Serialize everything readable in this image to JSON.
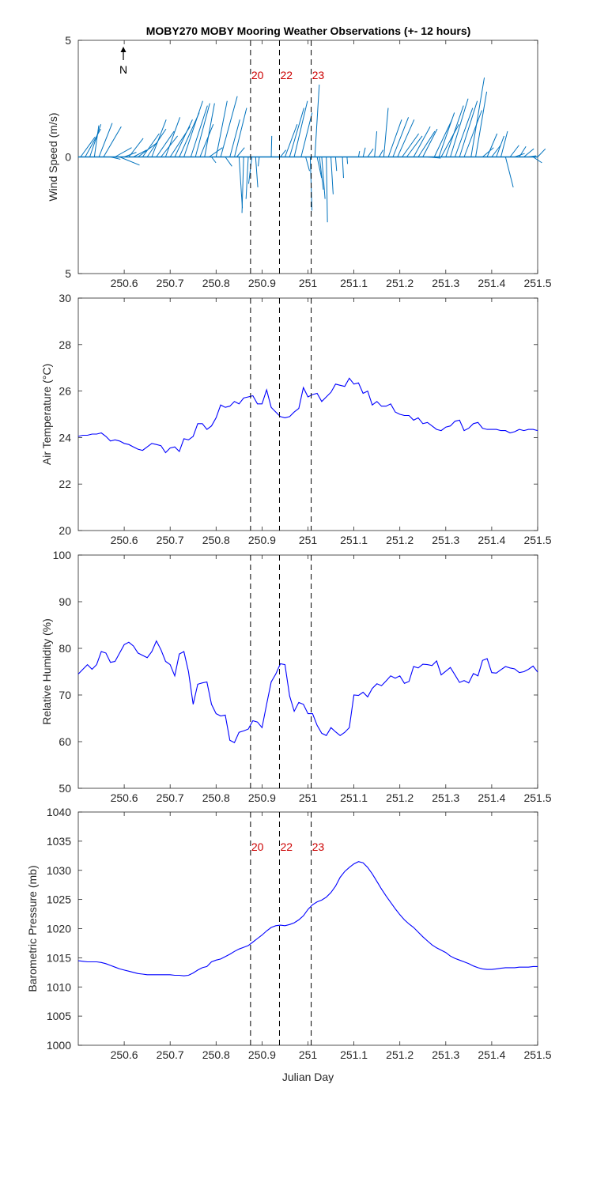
{
  "colors": {
    "wind": "#0072bd",
    "series": "#0000ff",
    "marker_label": "#cc0000",
    "axis": "#262626",
    "marker_line": "#000000"
  },
  "chart_data": [
    {
      "id": "wind",
      "type": "line",
      "title": "MOBY270 MOBY Mooring Weather Observations (+- 12 hours)",
      "ylabel": "Wind Speed (m/s)",
      "xlim": [
        250.5,
        251.5
      ],
      "ylim": [
        -5,
        5
      ],
      "ytick_labels": [
        "5",
        "0",
        "5"
      ],
      "xticks": [
        "250.6",
        "250.7",
        "250.8",
        "250.9",
        "251",
        "251.1",
        "251.2",
        "251.3",
        "251.4",
        "251.5"
      ],
      "north_label": "N",
      "vertical_markers": [
        {
          "x": 250.875,
          "label": "20"
        },
        {
          "x": 250.938,
          "label": "22"
        },
        {
          "x": 251.007,
          "label": "23"
        }
      ],
      "wind_vectors": [
        [
          250.505,
          1.3,
          0.85
        ],
        [
          250.515,
          1.4,
          1.2
        ],
        [
          250.525,
          1.0,
          1.4
        ],
        [
          250.535,
          0.4,
          1.35
        ],
        [
          250.545,
          1.2,
          1.45
        ],
        [
          250.555,
          1.6,
          1.3
        ],
        [
          250.57,
          0.9,
          -0.1
        ],
        [
          250.58,
          1.5,
          0.4
        ],
        [
          250.59,
          1.8,
          -0.35
        ],
        [
          250.6,
          1.1,
          0.2
        ],
        [
          250.61,
          1.3,
          0.8
        ],
        [
          250.62,
          1.2,
          0.3
        ],
        [
          250.63,
          1.7,
          0.6
        ],
        [
          250.64,
          1.5,
          1.0
        ],
        [
          250.65,
          1.7,
          1.2
        ],
        [
          250.66,
          1.3,
          1.6
        ],
        [
          250.67,
          1.6,
          1.1
        ],
        [
          250.68,
          1.5,
          0.9
        ],
        [
          250.69,
          1.3,
          1.7
        ],
        [
          250.7,
          1.8,
          1.3
        ],
        [
          250.71,
          1.6,
          1.6
        ],
        [
          250.72,
          1.8,
          1.9
        ],
        [
          250.73,
          1.7,
          2.4
        ],
        [
          250.745,
          1.5,
          2.2
        ],
        [
          250.755,
          1.3,
          2.3
        ],
        [
          250.765,
          1.2,
          1.4
        ],
        [
          250.775,
          0.9,
          2.3
        ],
        [
          250.785,
          1.2,
          0.4
        ],
        [
          250.79,
          0.4,
          -0.25
        ],
        [
          250.8,
          1.0,
          2.4
        ],
        [
          250.81,
          1.5,
          2.6
        ],
        [
          250.82,
          0.6,
          -0.4
        ],
        [
          250.83,
          0.9,
          1.6
        ],
        [
          250.84,
          1.1,
          2.1
        ],
        [
          250.845,
          0.7,
          0.4
        ],
        [
          250.85,
          0.3,
          -2.2
        ],
        [
          250.86,
          -0.15,
          -2.4
        ],
        [
          250.87,
          -0.2,
          -1.8
        ],
        [
          250.878,
          -0.3,
          -1.15
        ],
        [
          250.886,
          0.2,
          -1.3
        ],
        [
          250.894,
          -0.1,
          -0.4
        ],
        [
          250.92,
          0.05,
          0.9
        ],
        [
          250.94,
          0.5,
          0.3
        ],
        [
          250.95,
          1.1,
          1.4
        ],
        [
          250.96,
          1.3,
          2.1
        ],
        [
          250.97,
          1.2,
          2.4
        ],
        [
          250.985,
          1.0,
          1.9
        ],
        [
          250.995,
          0.35,
          -0.6
        ],
        [
          251.005,
          0.15,
          -2.3
        ],
        [
          251.015,
          0.4,
          3.1
        ],
        [
          251.02,
          0.4,
          -0.9
        ],
        [
          251.025,
          0.35,
          -1.4
        ],
        [
          251.03,
          0.3,
          -1.8
        ],
        [
          251.04,
          0.1,
          -2.8
        ],
        [
          251.05,
          0.2,
          -1.6
        ],
        [
          251.06,
          0.1,
          -0.6
        ],
        [
          251.075,
          0.1,
          -0.9
        ],
        [
          251.085,
          0.05,
          -0.3
        ],
        [
          251.11,
          0.1,
          0.25
        ],
        [
          251.12,
          0.2,
          0.4
        ],
        [
          251.13,
          0.5,
          0.35
        ],
        [
          251.145,
          0.2,
          1.1
        ],
        [
          251.155,
          0.35,
          0.3
        ],
        [
          251.165,
          0.4,
          2.1
        ],
        [
          251.175,
          1.2,
          1.6
        ],
        [
          251.185,
          1.4,
          1.7
        ],
        [
          251.195,
          1.5,
          1.6
        ],
        [
          251.205,
          1.5,
          1.0
        ],
        [
          251.215,
          1.4,
          0.9
        ],
        [
          251.23,
          1.5,
          1.3
        ],
        [
          251.24,
          1.5,
          1.1
        ],
        [
          251.25,
          1.3,
          1.2
        ],
        [
          251.26,
          1.2,
          -0.05
        ],
        [
          251.275,
          1.6,
          1.6
        ],
        [
          251.285,
          1.4,
          1.9
        ],
        [
          251.29,
          1.6,
          1.4
        ],
        [
          251.3,
          1.6,
          2.2
        ],
        [
          251.31,
          1.6,
          2.5
        ],
        [
          251.32,
          1.6,
          2.1
        ],
        [
          251.33,
          1.6,
          2.4
        ],
        [
          251.34,
          1.6,
          2.0
        ],
        [
          251.355,
          1.2,
          3.4
        ],
        [
          251.365,
          1.0,
          2.8
        ],
        [
          251.38,
          1.0,
          0.4
        ],
        [
          251.39,
          0.9,
          1.0
        ],
        [
          251.4,
          0.8,
          0.5
        ],
        [
          251.41,
          0.7,
          0.9
        ],
        [
          251.42,
          0.6,
          1.1
        ],
        [
          251.43,
          0.7,
          -1.3
        ],
        [
          251.44,
          0.8,
          0.5
        ],
        [
          251.45,
          0.9,
          0.15
        ],
        [
          251.46,
          0.6,
          0.45
        ],
        [
          251.47,
          0.9,
          0.35
        ],
        [
          251.48,
          0.7,
          0.05
        ],
        [
          251.49,
          0.8,
          -0.25
        ],
        [
          251.5,
          0.7,
          0.35
        ]
      ]
    },
    {
      "id": "airtemp",
      "type": "line",
      "ylabel": "Air Temperature (°C)",
      "xlim": [
        250.5,
        251.5
      ],
      "ylim": [
        20,
        30
      ],
      "yticks": [
        20,
        22,
        24,
        26,
        28,
        30
      ],
      "xticks": [
        "250.6",
        "250.7",
        "250.8",
        "250.9",
        "251",
        "251.1",
        "251.2",
        "251.3",
        "251.4",
        "251.5"
      ],
      "vertical_markers": [
        {
          "x": 250.875
        },
        {
          "x": 250.938
        },
        {
          "x": 251.007
        }
      ],
      "x": [
        250.5,
        250.51,
        250.52,
        250.53,
        250.54,
        250.55,
        250.56,
        250.57,
        250.58,
        250.59,
        250.6,
        250.61,
        250.62,
        250.63,
        250.64,
        250.65,
        250.66,
        250.67,
        250.68,
        250.69,
        250.7,
        250.71,
        250.72,
        250.73,
        250.74,
        250.75,
        250.76,
        250.77,
        250.78,
        250.79,
        250.8,
        250.81,
        250.82,
        250.83,
        250.84,
        250.85,
        250.86,
        250.87,
        250.88,
        250.89,
        250.9,
        250.91,
        250.92,
        250.93,
        250.94,
        250.95,
        250.96,
        250.97,
        250.98,
        250.99,
        251.0,
        251.01,
        251.02,
        251.03,
        251.04,
        251.05,
        251.06,
        251.07,
        251.08,
        251.09,
        251.1,
        251.11,
        251.12,
        251.13,
        251.14,
        251.15,
        251.16,
        251.17,
        251.18,
        251.19,
        251.2,
        251.21,
        251.22,
        251.23,
        251.24,
        251.25,
        251.26,
        251.27,
        251.28,
        251.29,
        251.3,
        251.31,
        251.32,
        251.33,
        251.34,
        251.35,
        251.36,
        251.37,
        251.38,
        251.39,
        251.4,
        251.41,
        251.42,
        251.43,
        251.44,
        251.45,
        251.46,
        251.47,
        251.48,
        251.49,
        251.5
      ],
      "y": [
        24.05,
        24.1,
        24.1,
        24.15,
        24.15,
        24.2,
        24.05,
        23.85,
        23.9,
        23.85,
        23.75,
        23.7,
        23.6,
        23.5,
        23.45,
        23.6,
        23.75,
        23.7,
        23.65,
        23.35,
        23.55,
        23.6,
        23.4,
        23.95,
        23.9,
        24.05,
        24.6,
        24.6,
        24.35,
        24.5,
        24.85,
        25.4,
        25.3,
        25.35,
        25.55,
        25.45,
        25.7,
        25.75,
        25.8,
        25.45,
        25.45,
        26.05,
        25.3,
        25.1,
        24.9,
        24.85,
        24.9,
        25.1,
        25.25,
        26.15,
        25.75,
        25.85,
        25.9,
        25.55,
        25.75,
        25.95,
        26.3,
        26.25,
        26.2,
        26.55,
        26.3,
        26.35,
        25.9,
        26.0,
        25.4,
        25.55,
        25.35,
        25.35,
        25.45,
        25.1,
        25.0,
        24.95,
        24.95,
        24.75,
        24.85,
        24.6,
        24.65,
        24.5,
        24.35,
        24.3,
        24.45,
        24.5,
        24.7,
        24.75,
        24.3,
        24.4,
        24.6,
        24.65,
        24.4,
        24.35,
        24.35,
        24.35,
        24.3,
        24.3,
        24.2,
        24.25,
        24.35,
        24.3,
        24.35,
        24.35,
        24.3
      ]
    },
    {
      "id": "humidity",
      "type": "line",
      "ylabel": "Relative Humidity (%)",
      "xlim": [
        250.5,
        251.5
      ],
      "ylim": [
        50,
        100
      ],
      "yticks": [
        50,
        60,
        70,
        80,
        90,
        100
      ],
      "xticks": [
        "250.6",
        "250.7",
        "250.8",
        "250.9",
        "251",
        "251.1",
        "251.2",
        "251.3",
        "251.4",
        "251.5"
      ],
      "vertical_markers": [
        {
          "x": 250.875
        },
        {
          "x": 250.938
        },
        {
          "x": 251.007
        }
      ],
      "x": [
        250.5,
        250.51,
        250.52,
        250.53,
        250.54,
        250.55,
        250.56,
        250.57,
        250.58,
        250.59,
        250.6,
        250.61,
        250.62,
        250.63,
        250.64,
        250.65,
        250.66,
        250.67,
        250.68,
        250.69,
        250.7,
        250.71,
        250.72,
        250.73,
        250.74,
        250.75,
        250.76,
        250.77,
        250.78,
        250.79,
        250.8,
        250.81,
        250.82,
        250.83,
        250.84,
        250.85,
        250.86,
        250.87,
        250.88,
        250.89,
        250.9,
        250.91,
        250.92,
        250.93,
        250.94,
        250.95,
        250.96,
        250.97,
        250.98,
        250.99,
        251.0,
        251.01,
        251.02,
        251.03,
        251.04,
        251.05,
        251.06,
        251.07,
        251.08,
        251.09,
        251.1,
        251.11,
        251.12,
        251.13,
        251.14,
        251.15,
        251.16,
        251.17,
        251.18,
        251.19,
        251.2,
        251.21,
        251.22,
        251.23,
        251.24,
        251.25,
        251.26,
        251.27,
        251.28,
        251.29,
        251.3,
        251.31,
        251.32,
        251.33,
        251.34,
        251.35,
        251.36,
        251.37,
        251.38,
        251.39,
        251.4,
        251.41,
        251.42,
        251.43,
        251.44,
        251.45,
        251.46,
        251.47,
        251.48,
        251.49,
        251.5
      ],
      "y": [
        74.5,
        75.5,
        76.5,
        75.5,
        76.5,
        79.3,
        79.0,
        77.0,
        77.2,
        79.0,
        80.8,
        81.3,
        80.5,
        79.0,
        78.5,
        78.0,
        79.3,
        81.6,
        79.7,
        77.2,
        76.5,
        74.1,
        78.8,
        79.3,
        75.0,
        68.0,
        72.3,
        72.6,
        72.8,
        68.0,
        66.0,
        65.5,
        65.7,
        60.3,
        59.8,
        62.0,
        62.3,
        62.7,
        64.5,
        64.2,
        63.0,
        68.0,
        72.8,
        74.5,
        76.7,
        76.5,
        69.8,
        66.5,
        68.4,
        68.0,
        66.0,
        66.0,
        63.5,
        61.8,
        61.3,
        63.0,
        62.1,
        61.3,
        62.0,
        63.0,
        70.0,
        69.9,
        70.6,
        69.6,
        71.4,
        72.4,
        72.0,
        73.0,
        74.1,
        73.6,
        74.1,
        72.5,
        72.9,
        76.1,
        75.8,
        76.6,
        76.5,
        76.3,
        77.3,
        74.3,
        75.1,
        75.9,
        74.3,
        72.7,
        73.1,
        72.6,
        74.6,
        74.1,
        77.4,
        77.8,
        74.8,
        74.7,
        75.4,
        76.1,
        75.8,
        75.6,
        74.8,
        75.0,
        75.5,
        76.2,
        74.9
      ]
    },
    {
      "id": "pressure",
      "type": "line",
      "ylabel": "Barometric Pressure (mb)",
      "xlabel": "Julian Day",
      "xlim": [
        250.5,
        251.5
      ],
      "ylim": [
        1000,
        1040
      ],
      "yticks": [
        1000,
        1005,
        1010,
        1015,
        1020,
        1025,
        1030,
        1035,
        1040
      ],
      "xticks": [
        "250.6",
        "250.7",
        "250.8",
        "250.9",
        "251",
        "251.1",
        "251.2",
        "251.3",
        "251.4",
        "251.5"
      ],
      "vertical_markers": [
        {
          "x": 250.875,
          "label": "20"
        },
        {
          "x": 250.938,
          "label": "22"
        },
        {
          "x": 251.007,
          "label": "23"
        }
      ],
      "x": [
        250.5,
        250.51,
        250.52,
        250.53,
        250.54,
        250.55,
        250.56,
        250.57,
        250.58,
        250.59,
        250.6,
        250.61,
        250.62,
        250.63,
        250.64,
        250.65,
        250.66,
        250.67,
        250.68,
        250.69,
        250.7,
        250.71,
        250.72,
        250.73,
        250.74,
        250.75,
        250.76,
        250.77,
        250.78,
        250.79,
        250.8,
        250.81,
        250.82,
        250.83,
        250.84,
        250.85,
        250.86,
        250.87,
        250.88,
        250.89,
        250.9,
        250.91,
        250.92,
        250.93,
        250.94,
        250.95,
        250.96,
        250.97,
        250.98,
        250.99,
        251.0,
        251.01,
        251.02,
        251.03,
        251.04,
        251.05,
        251.06,
        251.07,
        251.08,
        251.09,
        251.1,
        251.11,
        251.12,
        251.13,
        251.14,
        251.15,
        251.16,
        251.17,
        251.18,
        251.19,
        251.2,
        251.21,
        251.22,
        251.23,
        251.24,
        251.25,
        251.26,
        251.27,
        251.28,
        251.29,
        251.3,
        251.31,
        251.32,
        251.33,
        251.34,
        251.35,
        251.36,
        251.37,
        251.38,
        251.39,
        251.4,
        251.41,
        251.42,
        251.43,
        251.44,
        251.45,
        251.46,
        251.47,
        251.48,
        251.49,
        251.5
      ],
      "y": [
        1014.5,
        1014.4,
        1014.3,
        1014.3,
        1014.3,
        1014.2,
        1014.0,
        1013.7,
        1013.4,
        1013.1,
        1012.9,
        1012.7,
        1012.5,
        1012.3,
        1012.2,
        1012.1,
        1012.1,
        1012.1,
        1012.1,
        1012.1,
        1012.1,
        1012.0,
        1012.0,
        1011.9,
        1012.0,
        1012.4,
        1012.9,
        1013.3,
        1013.5,
        1014.3,
        1014.6,
        1014.8,
        1015.2,
        1015.6,
        1016.1,
        1016.5,
        1016.8,
        1017.1,
        1017.7,
        1018.3,
        1018.9,
        1019.6,
        1020.2,
        1020.5,
        1020.6,
        1020.5,
        1020.7,
        1021.0,
        1021.5,
        1022.2,
        1023.3,
        1024.1,
        1024.6,
        1024.9,
        1025.4,
        1026.2,
        1027.3,
        1028.8,
        1029.8,
        1030.5,
        1031.1,
        1031.5,
        1031.3,
        1030.5,
        1029.4,
        1028.1,
        1026.8,
        1025.6,
        1024.5,
        1023.4,
        1022.4,
        1021.5,
        1020.8,
        1020.2,
        1019.4,
        1018.6,
        1017.9,
        1017.2,
        1016.7,
        1016.3,
        1015.9,
        1015.3,
        1014.9,
        1014.6,
        1014.3,
        1014.0,
        1013.6,
        1013.3,
        1013.1,
        1013.0,
        1013.0,
        1013.1,
        1013.2,
        1013.3,
        1013.3,
        1013.3,
        1013.4,
        1013.4,
        1013.4,
        1013.5,
        1013.5
      ]
    }
  ]
}
